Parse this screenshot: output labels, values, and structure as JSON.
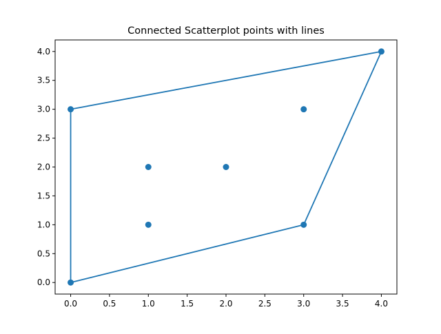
{
  "chart_data": {
    "type": "scatter",
    "title": "Connected Scatterplot points with lines",
    "xlabel": "",
    "ylabel": "",
    "xlim": [
      -0.2,
      4.2
    ],
    "ylim": [
      -0.2,
      4.2
    ],
    "x_ticks": [
      "0.0",
      "0.5",
      "1.0",
      "1.5",
      "2.0",
      "2.5",
      "3.0",
      "3.5",
      "4.0"
    ],
    "y_ticks": [
      "0.0",
      "0.5",
      "1.0",
      "1.5",
      "2.0",
      "2.5",
      "3.0",
      "3.5",
      "4.0"
    ],
    "grid": false,
    "legend": "none",
    "color": "#1f77b4",
    "points": [
      {
        "x": 1,
        "y": 1
      },
      {
        "x": 1,
        "y": 2
      },
      {
        "x": 2,
        "y": 2
      },
      {
        "x": 3,
        "y": 3
      },
      {
        "x": 0,
        "y": 0
      },
      {
        "x": 0,
        "y": 3
      },
      {
        "x": 3,
        "y": 1
      },
      {
        "x": 4,
        "y": 4
      }
    ],
    "connecting_line": [
      {
        "x": 0,
        "y": 0
      },
      {
        "x": 0,
        "y": 3
      },
      {
        "x": 4,
        "y": 4
      },
      {
        "x": 3,
        "y": 1
      },
      {
        "x": 0,
        "y": 0
      }
    ]
  }
}
